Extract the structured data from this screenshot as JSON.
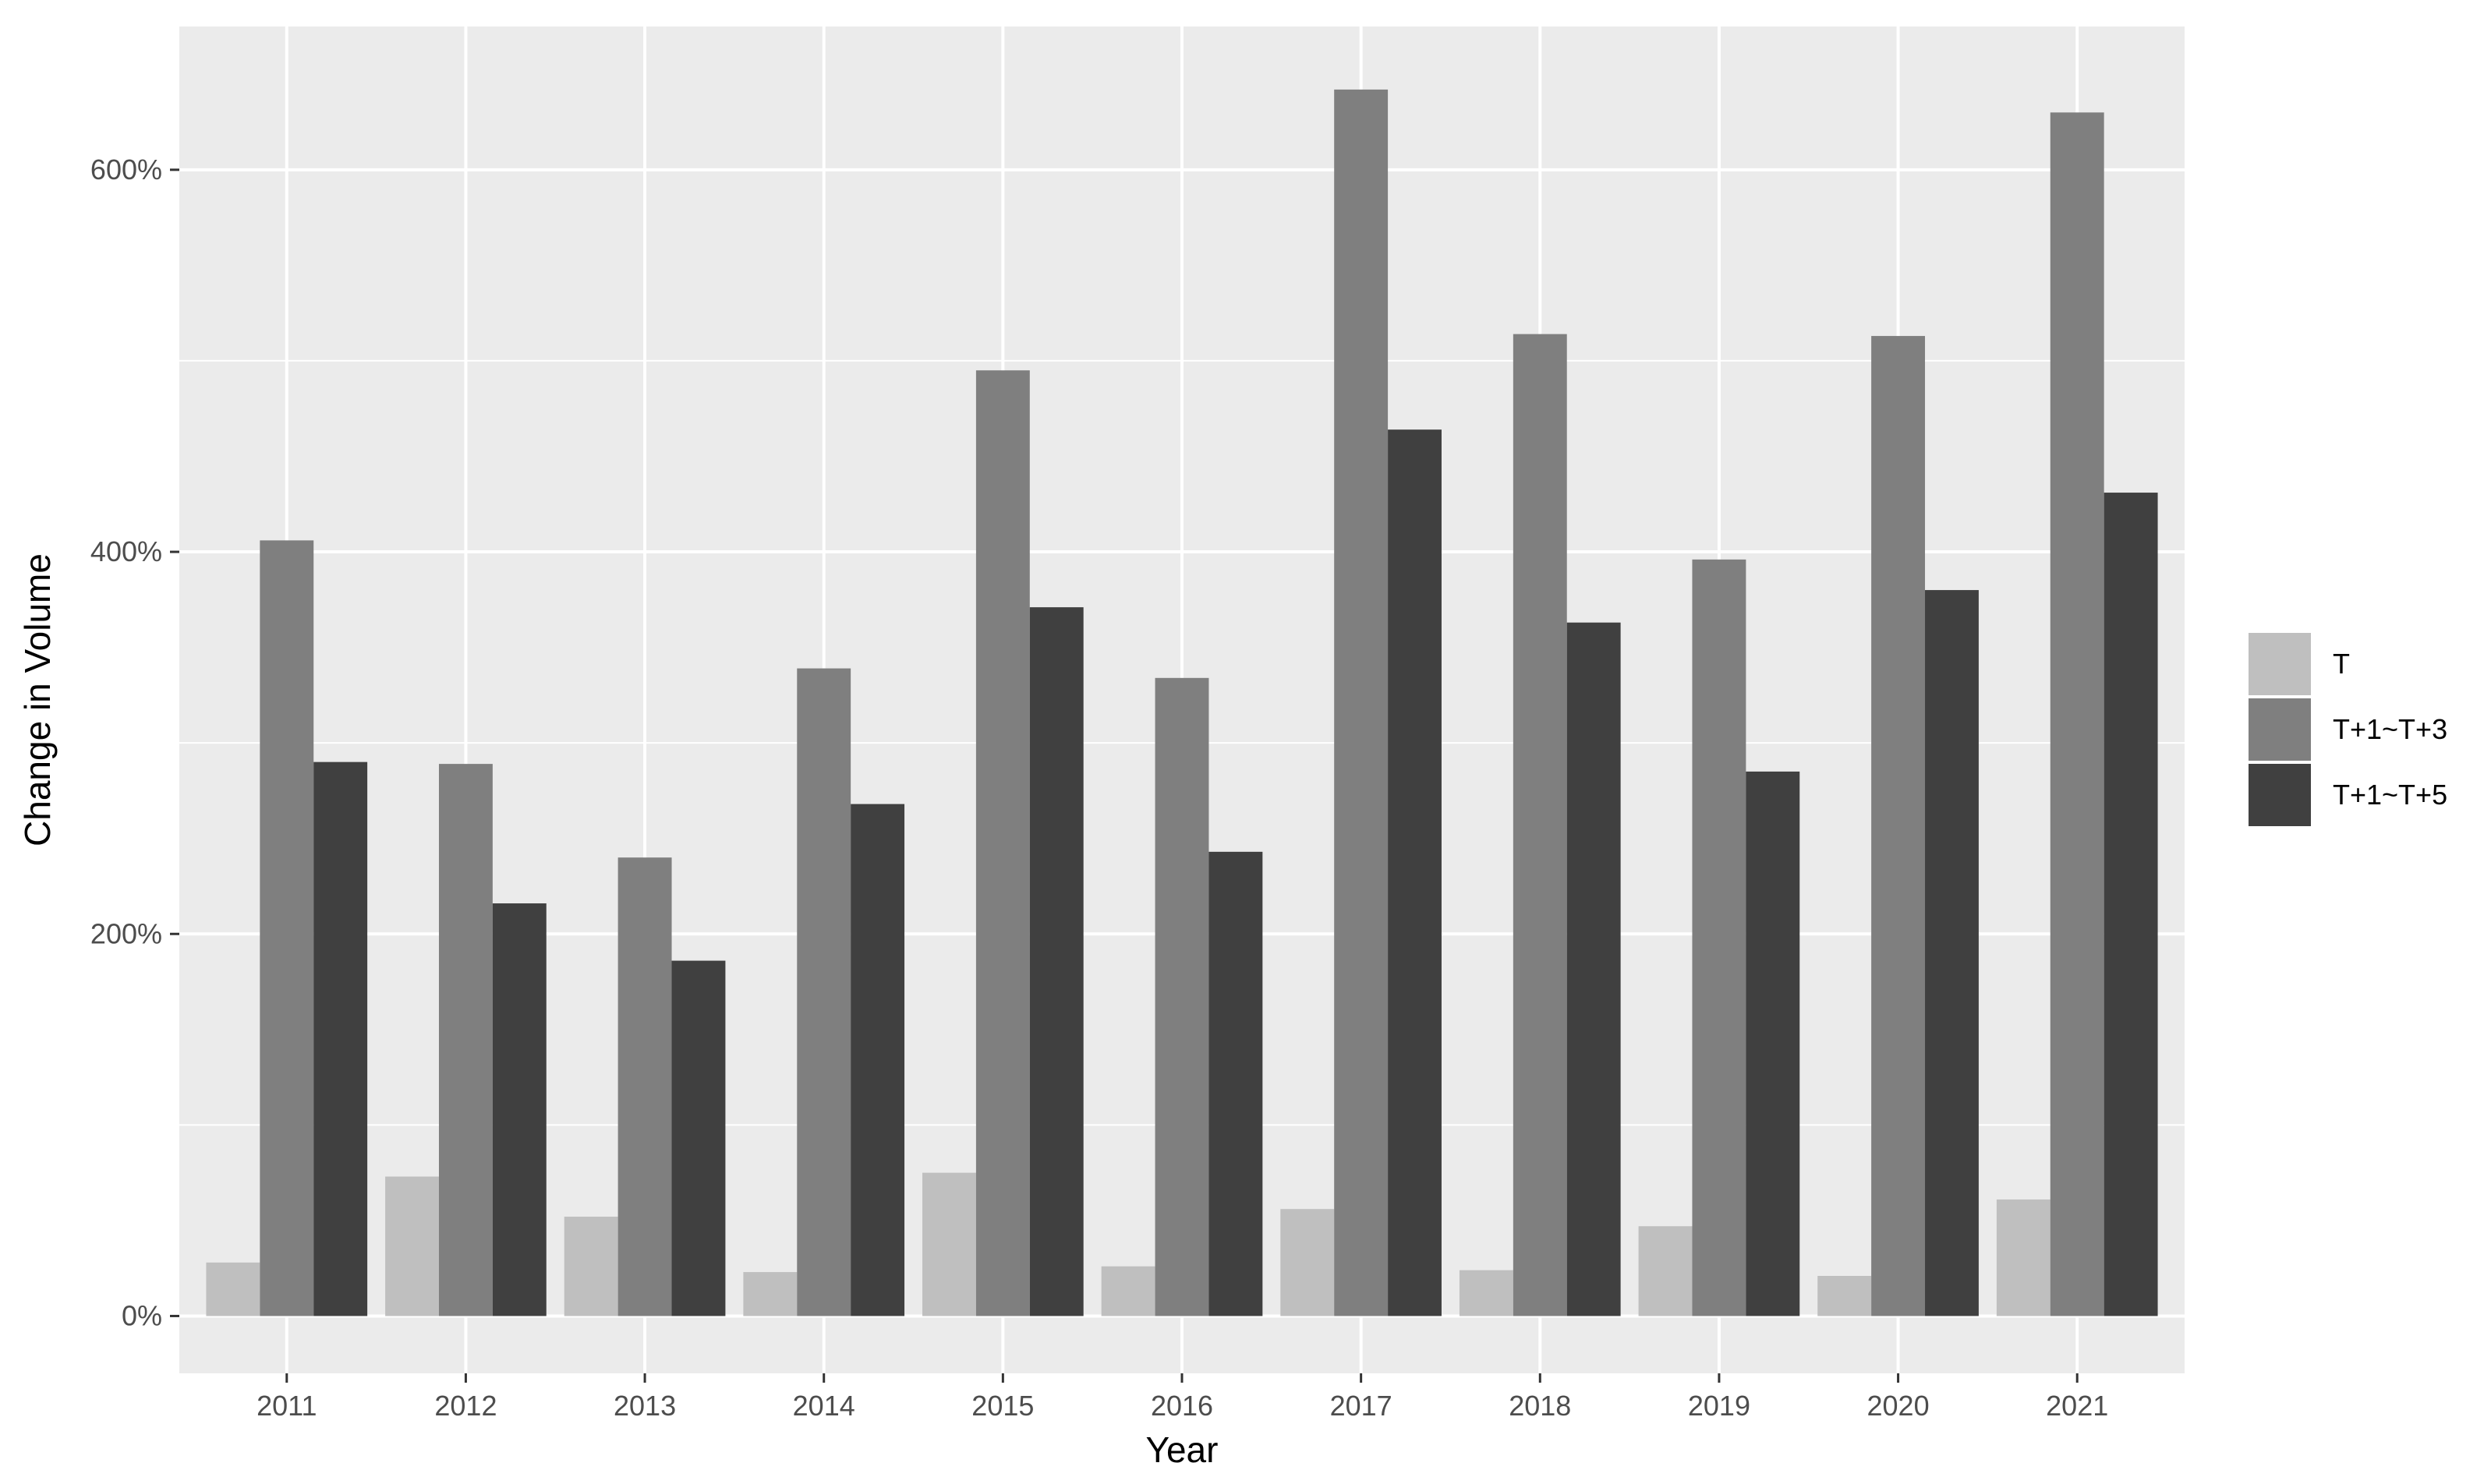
{
  "chart_data": {
    "type": "bar",
    "xlabel": "Year",
    "ylabel": "Change in Volume",
    "categories": [
      "2011",
      "2012",
      "2013",
      "2014",
      "2015",
      "2016",
      "2017",
      "2018",
      "2019",
      "2020",
      "2021"
    ],
    "series": [
      {
        "name": "T",
        "color": "#bfbfbf",
        "values": [
          28,
          73,
          52,
          23,
          75,
          26,
          56,
          24,
          47,
          21,
          61
        ]
      },
      {
        "name": "T+1~T+3",
        "color": "#7f7f7f",
        "values": [
          406,
          289,
          240,
          339,
          495,
          334,
          642,
          514,
          396,
          513,
          630
        ]
      },
      {
        "name": "T+1~T+5",
        "color": "#404040",
        "values": [
          290,
          216,
          186,
          268,
          371,
          243,
          464,
          363,
          285,
          380,
          431
        ]
      }
    ],
    "ylim": [
      -30,
      675
    ],
    "yticks": [
      0,
      200,
      400,
      600
    ],
    "ytick_labels": [
      "0%",
      "200%",
      "400%",
      "600%"
    ],
    "grid": true,
    "panel_background": "#ebebeb",
    "legend_position": "right"
  }
}
